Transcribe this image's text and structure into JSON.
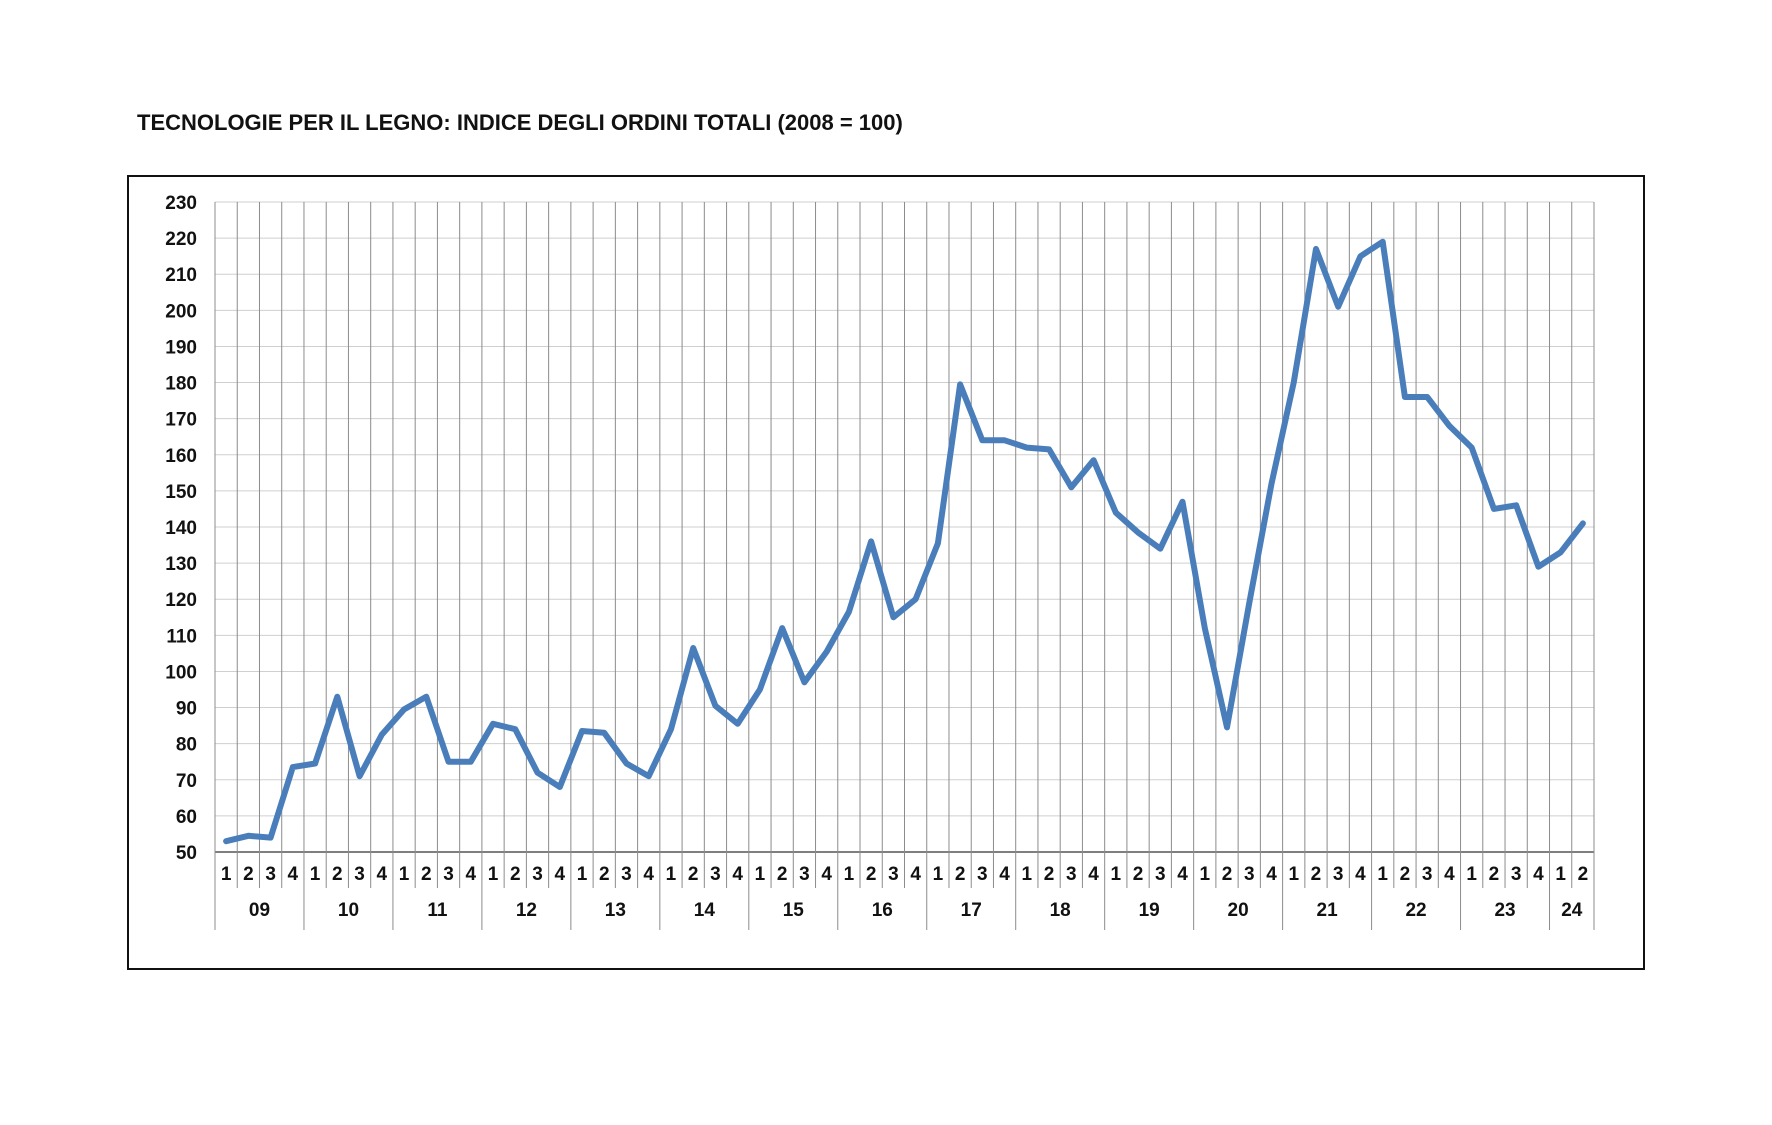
{
  "chart_data": {
    "type": "line",
    "title": "TECNOLOGIE PER IL LEGNO: INDICE DEGLI ORDINI TOTALI (2008 = 100)",
    "xlabel": "",
    "ylabel": "",
    "ylim": [
      50,
      230
    ],
    "y_ticks": [
      50,
      60,
      70,
      80,
      90,
      100,
      110,
      120,
      130,
      140,
      150,
      160,
      170,
      180,
      190,
      200,
      210,
      220,
      230
    ],
    "grid": true,
    "legend": "none",
    "line_color": "#4a7ebb",
    "years": [
      {
        "label": "09",
        "quarters": [
          "1",
          "2",
          "3",
          "4"
        ]
      },
      {
        "label": "10",
        "quarters": [
          "1",
          "2",
          "3",
          "4"
        ]
      },
      {
        "label": "11",
        "quarters": [
          "1",
          "2",
          "3",
          "4"
        ]
      },
      {
        "label": "12",
        "quarters": [
          "1",
          "2",
          "3",
          "4"
        ]
      },
      {
        "label": "13",
        "quarters": [
          "1",
          "2",
          "3",
          "4"
        ]
      },
      {
        "label": "14",
        "quarters": [
          "1",
          "2",
          "3",
          "4"
        ]
      },
      {
        "label": "15",
        "quarters": [
          "1",
          "2",
          "3",
          "4"
        ]
      },
      {
        "label": "16",
        "quarters": [
          "1",
          "2",
          "3",
          "4"
        ]
      },
      {
        "label": "17",
        "quarters": [
          "1",
          "2",
          "3",
          "4"
        ]
      },
      {
        "label": "18",
        "quarters": [
          "1",
          "2",
          "3",
          "4"
        ]
      },
      {
        "label": "19",
        "quarters": [
          "1",
          "2",
          "3",
          "4"
        ]
      },
      {
        "label": "20",
        "quarters": [
          "1",
          "2",
          "3",
          "4"
        ]
      },
      {
        "label": "21",
        "quarters": [
          "1",
          "2",
          "3",
          "4"
        ]
      },
      {
        "label": "22",
        "quarters": [
          "1",
          "2",
          "3",
          "4"
        ]
      },
      {
        "label": "23",
        "quarters": [
          "1",
          "2",
          "3",
          "4"
        ]
      },
      {
        "label": "24",
        "quarters": [
          "1",
          "2"
        ]
      }
    ],
    "series": [
      {
        "values": [
          53,
          54.5,
          54,
          73.5,
          74.5,
          93,
          71,
          82.5,
          89.5,
          93,
          75,
          75,
          85.5,
          84,
          72,
          68,
          83.5,
          83,
          74.5,
          71,
          84,
          106.5,
          90.5,
          85.5,
          95,
          112,
          97,
          105.5,
          116.5,
          136,
          115,
          120,
          135.5,
          179.5,
          164,
          164,
          162,
          161.5,
          151,
          158.5,
          144,
          138.5,
          134,
          147,
          112,
          84.5,
          119,
          152,
          180,
          217,
          201,
          215,
          219,
          176,
          176,
          168,
          162,
          145,
          146,
          129,
          133,
          141
        ]
      }
    ]
  }
}
